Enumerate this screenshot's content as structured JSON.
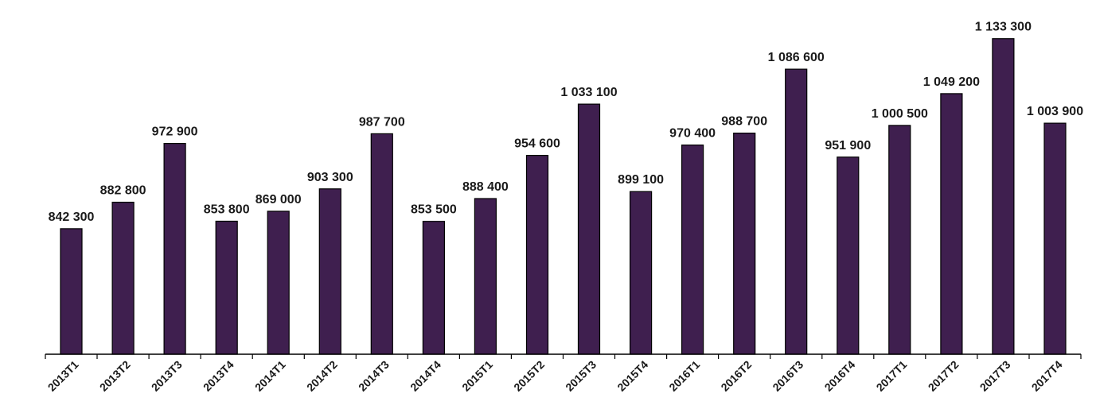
{
  "chart_data": {
    "type": "bar",
    "title": "",
    "xlabel": "",
    "ylabel": "",
    "categories": [
      "2013T1",
      "2013T2",
      "2013T3",
      "2013T4",
      "2014T1",
      "2014T2",
      "2014T3",
      "2014T4",
      "2015T1",
      "2015T2",
      "2015T3",
      "2015T4",
      "2016T1",
      "2016T2",
      "2016T3",
      "2016T4",
      "2017T1",
      "2017T2",
      "2017T3",
      "2017T4"
    ],
    "values": [
      842300,
      882800,
      972900,
      853800,
      869000,
      903300,
      987700,
      853500,
      888400,
      954600,
      1033100,
      899100,
      970400,
      988700,
      1086600,
      951900,
      1000500,
      1049200,
      1133300,
      1003900
    ],
    "value_labels": [
      "842 300",
      "882 800",
      "972 900",
      "853 800",
      "869 000",
      "903 300",
      "987 700",
      "853 500",
      "888 400",
      "954 600",
      "1 033 100",
      "899 100",
      "970 400",
      "988 700",
      "1 086 600",
      "951 900",
      "1 000 500",
      "1 049 200",
      "1 133 300",
      "1 003 900"
    ],
    "ylim": [
      650000,
      1150000
    ],
    "grid": false,
    "legend": "none",
    "bar_color": "#3f1f4f",
    "bar_stroke": "#000000",
    "axis_color": "#000000"
  }
}
